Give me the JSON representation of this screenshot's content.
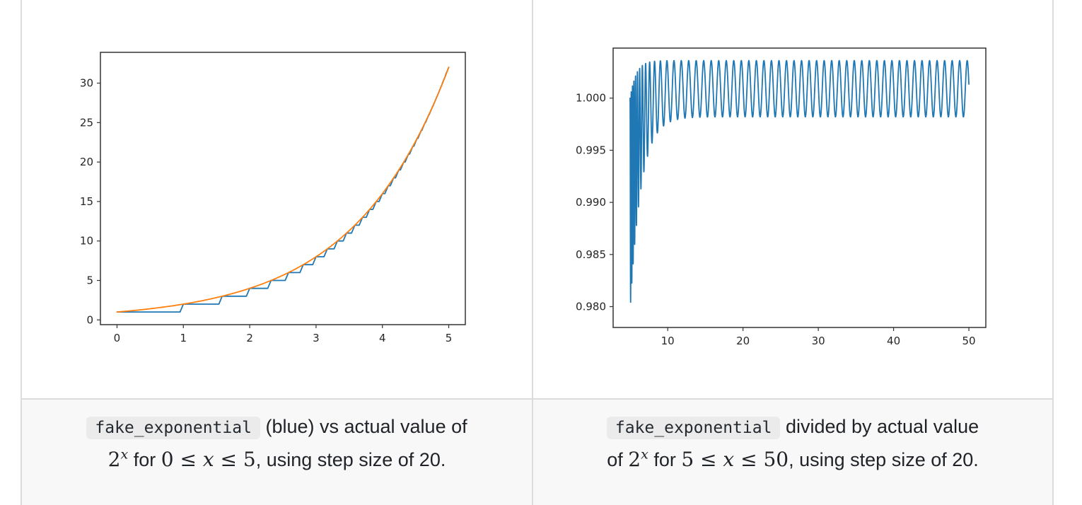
{
  "page": {
    "background": "#ffffff",
    "border_color": "#dcdcdc",
    "caption_background": "#f8f8f8",
    "code_chip_background": "#ebebeb",
    "blue": "#1f77b4",
    "orange": "#ff7f0e"
  },
  "chart_data": [
    {
      "type": "line",
      "title": "",
      "xlabel": "",
      "ylabel": "",
      "grid": false,
      "legend": "none",
      "xlim": [
        -0.25,
        5.25
      ],
      "ylim": [
        -0.6,
        33.9
      ],
      "xticks": [
        0,
        1,
        2,
        3,
        4,
        5
      ],
      "yticks": [
        0,
        5,
        10,
        15,
        20,
        25,
        30
      ],
      "ytick_decimals": 0,
      "series": [
        {
          "name": "fake_exponential approximation of 2^x (blue staircase, integer outputs)",
          "color": "#1f77b4",
          "kind": "steps",
          "sample_dx": 0.05,
          "step_levels": [
            1,
            2,
            3,
            4,
            5,
            6,
            7,
            8,
            9,
            10,
            11,
            12,
            13,
            14,
            15,
            16,
            17,
            18,
            19,
            20,
            21,
            22,
            23,
            24,
            25,
            26,
            27,
            28,
            29,
            30,
            31,
            32
          ],
          "step_starts": [
            0,
            1,
            1.585,
            2,
            2.3219,
            2.585,
            2.8074,
            3,
            3.1699,
            3.3219,
            3.4594,
            3.585,
            3.7004,
            3.8074,
            3.9069,
            4,
            4.0875,
            4.1699,
            4.2479,
            4.3219,
            4.3923,
            4.4594,
            4.5236,
            4.585,
            4.6439,
            4.7004,
            4.7549,
            4.8074,
            4.858,
            4.9069,
            4.9542,
            5
          ],
          "x_end": 5
        },
        {
          "name": "actual value of 2^x (orange smooth curve)",
          "color": "#ff7f0e",
          "kind": "pow2",
          "x_range": [
            0,
            5
          ],
          "endpoints": [
            [
              0,
              1
            ],
            [
              5,
              32
            ]
          ]
        }
      ]
    },
    {
      "type": "line",
      "title": "",
      "xlabel": "",
      "ylabel": "",
      "grid": false,
      "legend": "none",
      "xlim": [
        2.75,
        52.25
      ],
      "ylim": [
        0.978,
        1.0048
      ],
      "xticks": [
        10,
        20,
        30,
        40,
        50
      ],
      "yticks": [
        0.98,
        0.985,
        0.99,
        0.995,
        1.0
      ],
      "ytick_decimals": 3,
      "series": [
        {
          "name": "fake_exponential divided by actual 2^x (ratio)",
          "color": "#1f77b4",
          "kind": "ratio_oscillation",
          "x_range": [
            5,
            50
          ],
          "steady": {
            "min": 0.9982,
            "max": 1.0036,
            "period": 1.0
          },
          "transient": {
            "low_start": 0.9795,
            "low_tau": 1.45,
            "high_start": 1.0,
            "high_tau": 0.8,
            "freq_extra": 6.0,
            "freq_tau": 1.2
          }
        }
      ]
    }
  ],
  "captions": [
    {
      "lines": [
        [
          {
            "k": "code",
            "text": "fake_exponential"
          },
          {
            "k": "t",
            "text": " (blue) vs actual value of"
          }
        ],
        [
          {
            "k": "pow2",
            "base": "2",
            "sup": "x"
          },
          {
            "k": "t",
            "text": " for "
          },
          {
            "k": "math",
            "text": "0 ≤ x ≤ 5"
          },
          {
            "k": "t",
            "text": ", using step size of 20."
          }
        ]
      ]
    },
    {
      "lines": [
        [
          {
            "k": "code",
            "text": "fake_exponential"
          },
          {
            "k": "t",
            "text": " divided by actual value"
          }
        ],
        [
          {
            "k": "t",
            "text": "of "
          },
          {
            "k": "pow2",
            "base": "2",
            "sup": "x"
          },
          {
            "k": "t",
            "text": " for "
          },
          {
            "k": "math",
            "text": "5 ≤ x ≤ 50"
          },
          {
            "k": "t",
            "text": ", using step size of 20."
          }
        ]
      ]
    }
  ]
}
